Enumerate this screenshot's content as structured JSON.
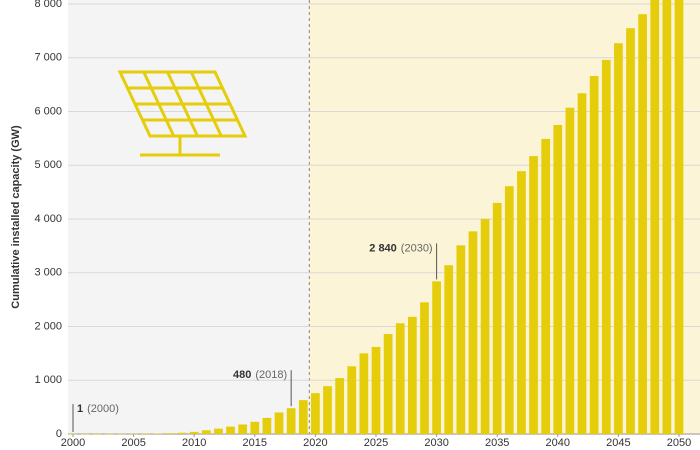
{
  "chart_data": {
    "type": "bar",
    "y_label": "Cumulative installed capacity (GW)",
    "x": [
      2000,
      2001,
      2002,
      2003,
      2004,
      2005,
      2006,
      2007,
      2008,
      2009,
      2010,
      2011,
      2012,
      2013,
      2014,
      2015,
      2016,
      2017,
      2018,
      2019,
      2020,
      2021,
      2022,
      2023,
      2024,
      2025,
      2026,
      2027,
      2028,
      2029,
      2030,
      2031,
      2032,
      2033,
      2034,
      2035,
      2036,
      2037,
      2038,
      2039,
      2040,
      2041,
      2042,
      2043,
      2044,
      2045,
      2046,
      2047,
      2048,
      2049,
      2050
    ],
    "values": [
      1,
      1,
      2,
      3,
      4,
      5,
      7,
      9,
      15,
      23,
      40,
      70,
      100,
      138,
      177,
      227,
      300,
      400,
      480,
      630,
      760,
      890,
      1040,
      1260,
      1500,
      1620,
      1860,
      2060,
      2180,
      2450,
      2840,
      3140,
      3510,
      3770,
      4000,
      4300,
      4610,
      4890,
      5170,
      5490,
      5750,
      6070,
      6340,
      6660,
      6960,
      7270,
      7550,
      7810,
      8080,
      8200,
      8350
    ],
    "color": "#e5cd0c",
    "xlim": [
      2000,
      2050
    ],
    "xticks": [
      2000,
      2005,
      2010,
      2015,
      2020,
      2025,
      2030,
      2035,
      2040,
      2045,
      2050
    ],
    "ylim": [
      0,
      8000
    ],
    "yticks": [
      0,
      {
        "value": 1000,
        "label": "1 000"
      },
      {
        "value": 2000,
        "label": "2 000"
      },
      {
        "value": 3000,
        "label": "3 000"
      },
      {
        "value": 4000,
        "label": "4 000"
      },
      {
        "value": 5000,
        "label": "5 000"
      },
      {
        "value": 6000,
        "label": "6 000"
      },
      {
        "value": 7000,
        "label": "7 000"
      },
      {
        "value": 8000,
        "label": "8 000"
      }
    ],
    "grid": true,
    "projection_start": 2019.5,
    "annotations": [
      {
        "x": 2000,
        "label": "1",
        "note": "(2000)"
      },
      {
        "x": 2018,
        "label": "480",
        "note": "(2018)"
      },
      {
        "x": 2030,
        "label": "2 840",
        "note": "(2030)"
      }
    ]
  }
}
